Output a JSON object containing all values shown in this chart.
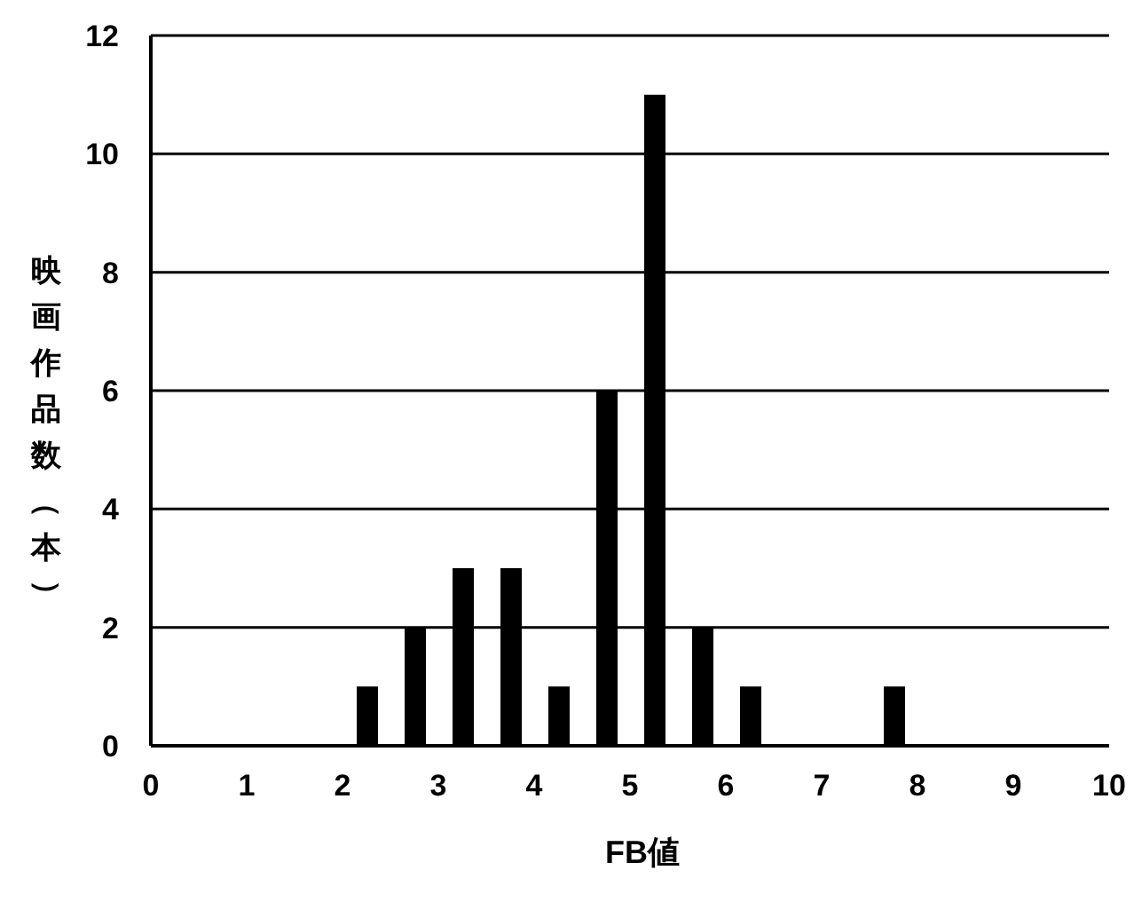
{
  "chart_data": {
    "type": "histogram",
    "xlabel": "FB値",
    "ylabel": "映画作品数（本）",
    "bins": [
      0,
      0.5,
      1,
      1.5,
      2,
      2.5,
      3,
      3.5,
      4,
      4.5,
      5,
      5.5,
      6,
      6.5,
      7,
      7.5,
      8,
      8.5,
      9,
      9.5,
      10
    ],
    "values": [
      0,
      0,
      0,
      0,
      1,
      2,
      3,
      3,
      1,
      6,
      11,
      2,
      1,
      0,
      0,
      1,
      0,
      0,
      0,
      0
    ],
    "color": "#000000",
    "xlim": [
      0,
      10
    ],
    "xticks": [
      0,
      1,
      2,
      3,
      4,
      5,
      6,
      7,
      8,
      9,
      10
    ],
    "ylim": [
      0,
      12
    ],
    "yticks": [
      0,
      2,
      4,
      6,
      8,
      10,
      12
    ],
    "grid": "y"
  }
}
